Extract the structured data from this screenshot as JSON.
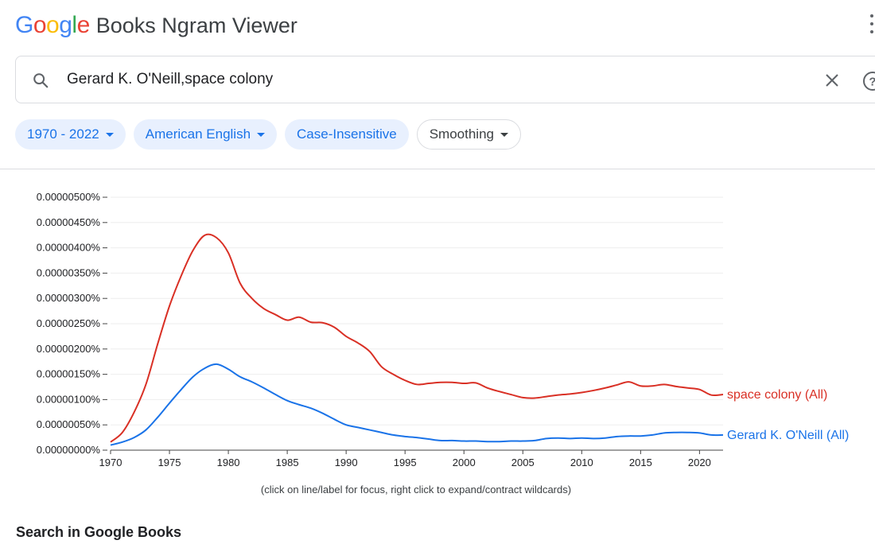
{
  "header": {
    "logo_letters": [
      {
        "ch": "G",
        "color": "#4285F4"
      },
      {
        "ch": "o",
        "color": "#EA4335"
      },
      {
        "ch": "o",
        "color": "#FBBC05"
      },
      {
        "ch": "g",
        "color": "#4285F4"
      },
      {
        "ch": "l",
        "color": "#34A853"
      },
      {
        "ch": "e",
        "color": "#EA4335"
      }
    ],
    "product_name": "Books Ngram Viewer"
  },
  "search": {
    "query": "Gerard K. O'Neill,space colony"
  },
  "filters": {
    "year_range": "1970 - 2022",
    "corpus": "American English",
    "case": "Case-Insensitive",
    "smoothing": "Smoothing"
  },
  "chart_data": {
    "type": "line",
    "xlim": [
      1970,
      2022
    ],
    "ylim": [
      0,
      5e-08
    ],
    "x_ticks": [
      1970,
      1975,
      1980,
      1985,
      1990,
      1995,
      2000,
      2005,
      2010,
      2015,
      2020
    ],
    "y_ticks": [
      "0.00000000%",
      "0.00000050%",
      "0.00000100%",
      "0.00000150%",
      "0.00000200%",
      "0.00000250%",
      "0.00000300%",
      "0.00000350%",
      "0.00000400%",
      "0.00000450%",
      "0.00000500%"
    ],
    "grid": true,
    "series": [
      {
        "name": "space colony (All)",
        "color": "#d93025",
        "x": [
          1970,
          1971,
          1972,
          1973,
          1974,
          1975,
          1976,
          1977,
          1978,
          1979,
          1980,
          1981,
          1982,
          1983,
          1984,
          1985,
          1986,
          1987,
          1988,
          1989,
          1990,
          1991,
          1992,
          1993,
          1994,
          1995,
          1996,
          1997,
          1998,
          1999,
          2000,
          2001,
          2002,
          2003,
          2004,
          2005,
          2006,
          2007,
          2008,
          2009,
          2010,
          2011,
          2012,
          2013,
          2014,
          2015,
          2016,
          2017,
          2018,
          2019,
          2020,
          2021,
          2022
        ],
        "y": [
          1.6e-09,
          3.5e-09,
          7.5e-09,
          1.3e-08,
          2.1e-08,
          2.85e-08,
          3.45e-08,
          3.95e-08,
          4.25e-08,
          4.2e-08,
          3.9e-08,
          3.3e-08,
          3e-08,
          2.8e-08,
          2.68e-08,
          2.57e-08,
          2.63e-08,
          2.53e-08,
          2.52e-08,
          2.43e-08,
          2.25e-08,
          2.12e-08,
          1.95e-08,
          1.65e-08,
          1.5e-08,
          1.38e-08,
          1.3e-08,
          1.32e-08,
          1.34e-08,
          1.34e-08,
          1.32e-08,
          1.33e-08,
          1.23e-08,
          1.16e-08,
          1.1e-08,
          1.04e-08,
          1.03e-08,
          1.06e-08,
          1.09e-08,
          1.11e-08,
          1.14e-08,
          1.18e-08,
          1.23e-08,
          1.29e-08,
          1.35e-08,
          1.27e-08,
          1.27e-08,
          1.3e-08,
          1.26e-08,
          1.23e-08,
          1.2e-08,
          1.09e-08,
          1.1e-08
        ]
      },
      {
        "name": "Gerard K. O'Neill (All)",
        "color": "#1a73e8",
        "x": [
          1970,
          1971,
          1972,
          1973,
          1974,
          1975,
          1976,
          1977,
          1978,
          1979,
          1980,
          1981,
          1982,
          1983,
          1984,
          1985,
          1986,
          1987,
          1988,
          1989,
          1990,
          1991,
          1992,
          1993,
          1994,
          1995,
          1996,
          1997,
          1998,
          1999,
          2000,
          2001,
          2002,
          2003,
          2004,
          2005,
          2006,
          2007,
          2008,
          2009,
          2010,
          2011,
          2012,
          2013,
          2014,
          2015,
          2016,
          2017,
          2018,
          2019,
          2020,
          2021,
          2022
        ],
        "y": [
          1e-09,
          1.6e-09,
          2.5e-09,
          4e-09,
          6.5e-09,
          9.3e-09,
          1.2e-08,
          1.45e-08,
          1.62e-08,
          1.7e-08,
          1.6e-08,
          1.45e-08,
          1.35e-08,
          1.23e-08,
          1.1e-08,
          9.8e-09,
          9e-09,
          8.3e-09,
          7.3e-09,
          6.1e-09,
          5e-09,
          4.5e-09,
          4e-09,
          3.5e-09,
          3e-09,
          2.7e-09,
          2.5e-09,
          2.2e-09,
          1.9e-09,
          1.9e-09,
          1.8e-09,
          1.8e-09,
          1.7e-09,
          1.7e-09,
          1.8e-09,
          1.8e-09,
          1.9e-09,
          2.3e-09,
          2.4e-09,
          2.3e-09,
          2.4e-09,
          2.3e-09,
          2.4e-09,
          2.7e-09,
          2.8e-09,
          2.8e-09,
          3e-09,
          3.4e-09,
          3.5e-09,
          3.5e-09,
          3.4e-09,
          3e-09,
          3e-09
        ]
      }
    ]
  },
  "chart_note": "(click on line/label for focus, right click to expand/contract wildcards)",
  "books_section_title": "Search in Google Books"
}
